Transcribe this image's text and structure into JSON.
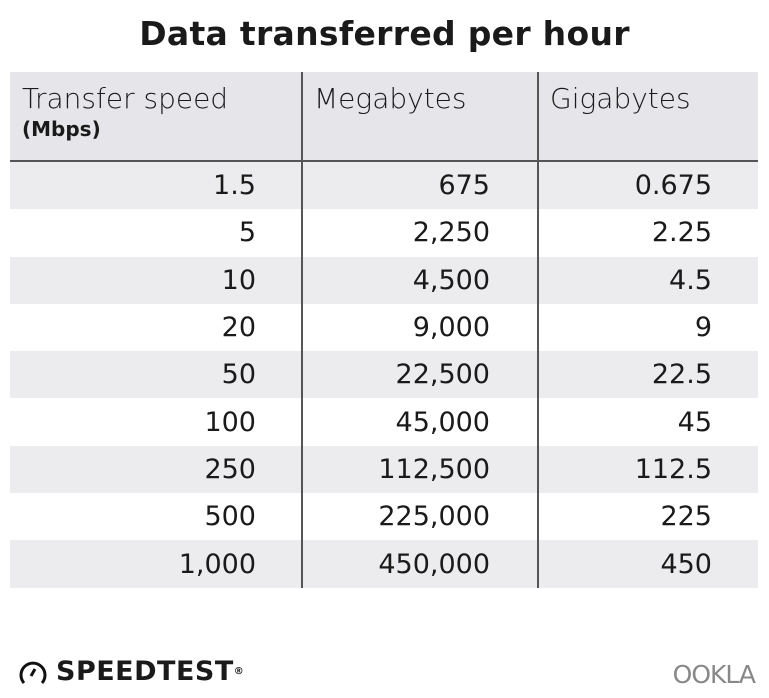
{
  "chart_data": {
    "type": "table",
    "title": "Data transferred per hour",
    "columns": [
      {
        "label": "Transfer speed",
        "sublabel": "(Mbps)"
      },
      {
        "label": "Megabytes"
      },
      {
        "label": "Gigabytes"
      }
    ],
    "rows": [
      [
        "1.5",
        "675",
        "0.675"
      ],
      [
        "5",
        "2,250",
        "2.25"
      ],
      [
        "10",
        "4,500",
        "4.5"
      ],
      [
        "20",
        "9,000",
        "9"
      ],
      [
        "50",
        "22,500",
        "22.5"
      ],
      [
        "100",
        "45,000",
        "45"
      ],
      [
        "250",
        "112,500",
        "112.5"
      ],
      [
        "500",
        "225,000",
        "225"
      ],
      [
        "1,000",
        "450,000",
        "450"
      ]
    ],
    "colors": {
      "header_bg": "#e6e6ea",
      "stripe_bg": "#ececee",
      "rule": "#555555"
    }
  },
  "branding": {
    "left": "SPEEDTEST",
    "left_mark": "®",
    "right": "OOKLA"
  }
}
